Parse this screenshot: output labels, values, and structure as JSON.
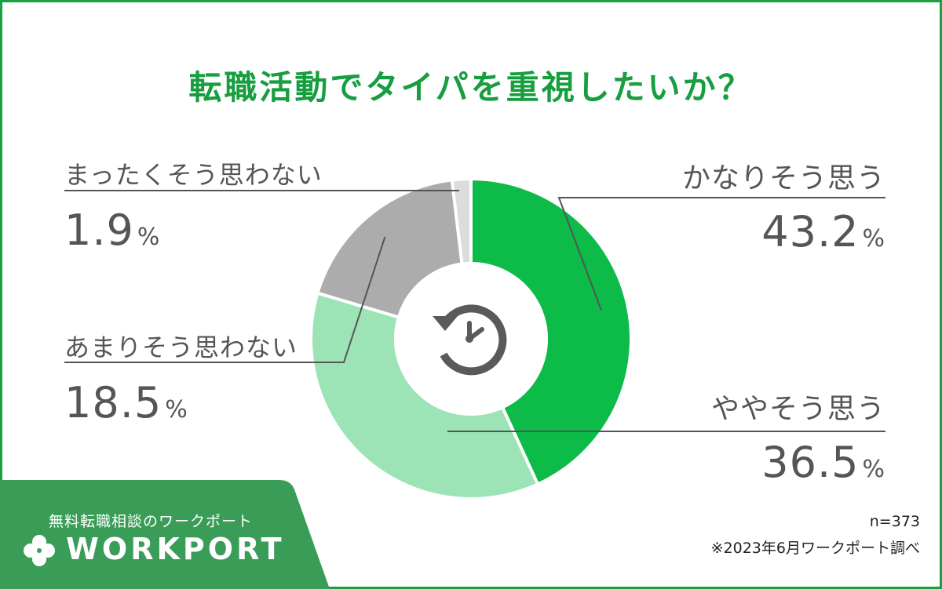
{
  "title": "転職活動でタイパを重視したいか？",
  "chart_data": {
    "type": "pie",
    "variant": "donut",
    "title": "転職活動でタイパを重視したいか？",
    "categories": [
      "かなりそう思う",
      "ややそう思う",
      "あまりそう思わない",
      "まったくそう思わない"
    ],
    "values": [
      43.2,
      36.5,
      18.5,
      1.9
    ],
    "value_labels": [
      "43.2",
      "36.5",
      "18.5",
      "1.9"
    ],
    "unit": "%",
    "colors": [
      "#0cbb48",
      "#9ce4b6",
      "#acacac",
      "#dcdcdc"
    ],
    "center_icon": "clock-refresh-icon",
    "legend": "none"
  },
  "note": {
    "sample": "n=373",
    "source": "※2023年6月ワークポート調べ"
  },
  "brand": {
    "tagline": "無料転職相談のワークポート",
    "logo_text": "WORKPORT",
    "logo_icon": "clover-icon",
    "color": "#3a9d57"
  }
}
